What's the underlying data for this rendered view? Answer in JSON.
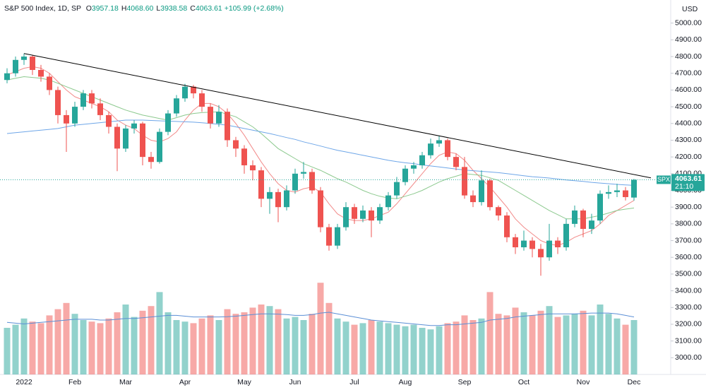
{
  "chart_data": {
    "type": "candlestick",
    "symbol": "S&P 500 Index, 1D, SP",
    "ohlc_legend": [
      {
        "label": "O",
        "value_label": "3957.18"
      },
      {
        "label": "H",
        "value_label": "4068.60"
      },
      {
        "label": "L",
        "value_label": "3938.58"
      },
      {
        "label": "C",
        "value_label": "4063.61"
      }
    ],
    "change_label": "+105.99 (+2.68%)",
    "currency": "USD",
    "ticker_tag": "SPX",
    "countdown": "21:10",
    "up_color": "#26a69a",
    "down_color": "#ef5350",
    "categories": [
      null,
      null,
      "2022",
      null,
      null,
      null,
      null,
      null,
      "Feb",
      null,
      null,
      null,
      null,
      null,
      "Mar",
      null,
      null,
      null,
      null,
      null,
      null,
      "Apr",
      null,
      null,
      null,
      null,
      null,
      null,
      "May",
      null,
      null,
      null,
      null,
      null,
      "Jun",
      null,
      null,
      null,
      null,
      null,
      null,
      "Jul",
      null,
      null,
      null,
      null,
      null,
      "Aug",
      null,
      null,
      null,
      null,
      null,
      null,
      "Sep",
      null,
      null,
      null,
      null,
      null,
      null,
      "Oct",
      null,
      null,
      null,
      null,
      null,
      null,
      "Nov",
      null,
      null,
      null,
      null,
      null,
      "Dec"
    ],
    "open": [
      4660,
      4700,
      4780,
      4800,
      4720,
      4680,
      4600,
      4450,
      4400,
      4500,
      4580,
      4520,
      4450,
      4380,
      4250,
      4370,
      4400,
      4200,
      4170,
      4350,
      4460,
      4550,
      4620,
      4580,
      4500,
      4400,
      4470,
      4300,
      4250,
      4150,
      4120,
      3950,
      3990,
      3900,
      4000,
      4100,
      4110,
      4000,
      3780,
      3670,
      3780,
      3900,
      3830,
      3880,
      3820,
      3900,
      3970,
      4050,
      4130,
      4150,
      4210,
      4280,
      4300,
      4200,
      4140,
      3970,
      3930,
      4060,
      3900,
      3850,
      3720,
      3660,
      3700,
      3650,
      3600,
      3700,
      3660,
      3800,
      3880,
      3770,
      3820,
      3980,
      3990,
      4000,
      3957.18
    ],
    "high": [
      4730,
      4800,
      4818,
      4810,
      4750,
      4700,
      4620,
      4480,
      4530,
      4600,
      4600,
      4550,
      4470,
      4400,
      4390,
      4420,
      4410,
      4230,
      4370,
      4480,
      4570,
      4637,
      4630,
      4600,
      4520,
      4510,
      4490,
      4320,
      4270,
      4180,
      4140,
      4020,
      4010,
      4030,
      4130,
      4170,
      4130,
      4020,
      3800,
      3800,
      3930,
      3920,
      3910,
      3900,
      3920,
      3990,
      4080,
      4150,
      4170,
      4230,
      4310,
      4325,
      4310,
      4220,
      4200,
      4000,
      4120,
      4070,
      3910,
      3870,
      3740,
      3760,
      3720,
      3680,
      3800,
      3720,
      3830,
      3910,
      3890,
      3860,
      4000,
      4030,
      4040,
      4020,
      4068.6
    ],
    "low": [
      4640,
      4680,
      4750,
      4690,
      4650,
      4570,
      4400,
      4230,
      4380,
      4480,
      4490,
      4420,
      4340,
      4115,
      4230,
      4340,
      4150,
      4130,
      4160,
      4330,
      4440,
      4530,
      4550,
      4470,
      4370,
      4380,
      4260,
      4200,
      4100,
      4060,
      3900,
      3860,
      3810,
      3880,
      3980,
      4070,
      3980,
      3750,
      3640,
      3650,
      3760,
      3800,
      3810,
      3720,
      3800,
      3880,
      3950,
      4030,
      4100,
      4130,
      4190,
      4260,
      4180,
      4120,
      3950,
      3900,
      3910,
      3880,
      3820,
      3690,
      3620,
      3640,
      3600,
      3490,
      3580,
      3620,
      3640,
      3780,
      3720,
      3740,
      3800,
      3950,
      3960,
      3940,
      3938.58
    ],
    "close": [
      4700,
      4780,
      4800,
      4720,
      4680,
      4600,
      4450,
      4400,
      4500,
      4580,
      4520,
      4450,
      4380,
      4250,
      4370,
      4400,
      4200,
      4170,
      4350,
      4460,
      4550,
      4620,
      4580,
      4500,
      4400,
      4470,
      4300,
      4250,
      4150,
      4120,
      3950,
      3990,
      3900,
      4000,
      4100,
      4110,
      4000,
      3780,
      3670,
      3780,
      3900,
      3830,
      3880,
      3820,
      3900,
      3970,
      4050,
      4130,
      4150,
      4210,
      4280,
      4300,
      4200,
      4140,
      3970,
      3930,
      4060,
      3900,
      3850,
      3720,
      3660,
      3700,
      3650,
      3600,
      3700,
      3660,
      3800,
      3880,
      3770,
      3820,
      3980,
      3990,
      4000,
      3960,
      4063.61
    ],
    "volume": [
      3.0,
      3.2,
      3.6,
      3.4,
      3.3,
      3.8,
      4.2,
      4.6,
      3.9,
      3.5,
      3.4,
      3.3,
      3.6,
      4.0,
      4.5,
      3.7,
      4.1,
      4.4,
      5.3,
      4.0,
      3.5,
      3.4,
      3.3,
      3.6,
      3.8,
      3.5,
      4.2,
      3.9,
      4.0,
      4.3,
      4.5,
      4.4,
      4.2,
      3.6,
      3.7,
      3.5,
      3.9,
      5.9,
      4.6,
      3.6,
      3.4,
      3.2,
      3.3,
      3.5,
      3.4,
      3.3,
      3.2,
      3.1,
      3.2,
      3.0,
      2.9,
      3.1,
      3.3,
      3.4,
      3.8,
      3.5,
      3.6,
      5.3,
      3.9,
      3.8,
      4.3,
      4.0,
      3.8,
      4.1,
      4.4,
      3.7,
      3.8,
      3.9,
      4.1,
      3.8,
      4.5,
      3.9,
      3.6,
      3.2,
      3.5
    ],
    "volume_ma": {
      "color": "#5b8fd6",
      "values": [
        3.35,
        3.3,
        3.25,
        3.3,
        3.35,
        3.4,
        3.45,
        3.5,
        3.55,
        3.55,
        3.55,
        3.5,
        3.5,
        3.55,
        3.6,
        3.6,
        3.65,
        3.7,
        3.75,
        3.8,
        3.8,
        3.75,
        3.7,
        3.7,
        3.7,
        3.7,
        3.72,
        3.75,
        3.8,
        3.85,
        3.9,
        3.9,
        3.88,
        3.85,
        3.8,
        3.8,
        3.85,
        3.95,
        4.0,
        3.9,
        3.8,
        3.7,
        3.6,
        3.5,
        3.45,
        3.4,
        3.35,
        3.3,
        3.25,
        3.2,
        3.15,
        3.15,
        3.2,
        3.2,
        3.25,
        3.3,
        3.35,
        3.5,
        3.55,
        3.6,
        3.7,
        3.75,
        3.8,
        3.85,
        3.9,
        3.9,
        3.9,
        3.9,
        3.92,
        3.95,
        3.95,
        3.95,
        3.9,
        3.8,
        3.7
      ]
    },
    "overlays": [
      {
        "color": "#f28b8a",
        "values": [
          4690,
          4710,
          4730,
          4740,
          4730,
          4700,
          4650,
          4600,
          4560,
          4540,
          4520,
          4500,
          4470,
          4420,
          4390,
          4370,
          4330,
          4300,
          4290,
          4310,
          4350,
          4420,
          4480,
          4520,
          4520,
          4500,
          4460,
          4400,
          4330,
          4250,
          4170,
          4100,
          4040,
          4000,
          3990,
          4010,
          4020,
          3990,
          3920,
          3860,
          3830,
          3820,
          3820,
          3830,
          3850,
          3870,
          3920,
          3980,
          4040,
          4100,
          4160,
          4210,
          4230,
          4220,
          4180,
          4120,
          4070,
          4020,
          3960,
          3900,
          3830,
          3780,
          3740,
          3700,
          3680,
          3670,
          3690,
          3720,
          3740,
          3760,
          3800,
          3850,
          3880,
          3910,
          3940
        ]
      },
      {
        "color": "#8cc98e",
        "values": [
          4660,
          4670,
          4680,
          4675,
          4670,
          4660,
          4640,
          4620,
          4600,
          4580,
          4560,
          4540,
          4520,
          4500,
          4480,
          4465,
          4450,
          4440,
          4430,
          4420,
          4435,
          4450,
          4460,
          4465,
          4468,
          4470,
          4455,
          4440,
          4410,
          4380,
          4340,
          4295,
          4250,
          4220,
          4190,
          4160,
          4140,
          4120,
          4095,
          4070,
          4050,
          4025,
          4000,
          3980,
          3965,
          3955,
          3950,
          3965,
          3980,
          4000,
          4025,
          4050,
          4070,
          4085,
          4100,
          4095,
          4090,
          4075,
          4060,
          4030,
          4000,
          3970,
          3940,
          3910,
          3880,
          3855,
          3830,
          3830,
          3830,
          3840,
          3850,
          3865,
          3880,
          3888,
          3895
        ]
      },
      {
        "color": "#6ea6e8",
        "values": [
          4340,
          4345,
          4350,
          4355,
          4360,
          4365,
          4370,
          4380,
          4390,
          4395,
          4400,
          4405,
          4410,
          4415,
          4420,
          4420,
          4420,
          4418,
          4416,
          4414,
          4412,
          4410,
          4408,
          4404,
          4400,
          4395,
          4390,
          4380,
          4370,
          4360,
          4350,
          4340,
          4328,
          4316,
          4305,
          4290,
          4278,
          4265,
          4252,
          4240,
          4230,
          4220,
          4210,
          4200,
          4190,
          4180,
          4172,
          4165,
          4160,
          4152,
          4146,
          4140,
          4134,
          4128,
          4122,
          4118,
          4114,
          4110,
          4106,
          4100,
          4094,
          4088,
          4082,
          4078,
          4074,
          4068,
          4062,
          4058,
          4054,
          4048,
          4044,
          4040,
          4036,
          4033,
          4030
        ]
      }
    ],
    "trendline": {
      "color": "#000000",
      "x": [
        2,
        76
      ],
      "values": [
        4818,
        4075
      ]
    },
    "ylim": [
      2900,
      5100
    ],
    "yticks": [
      {
        "value": 3000,
        "label": "3000.00"
      },
      {
        "value": 3100,
        "label": "3100.00"
      },
      {
        "value": 3200,
        "label": "3200.00"
      },
      {
        "value": 3300,
        "label": "3300.00"
      },
      {
        "value": 3400,
        "label": "3400.00"
      },
      {
        "value": 3500,
        "label": "3500.00"
      },
      {
        "value": 3600,
        "label": "3600.00"
      },
      {
        "value": 3700,
        "label": "3700.00"
      },
      {
        "value": 3800,
        "label": "3800.00"
      },
      {
        "value": 3900,
        "label": "3900.00"
      },
      {
        "value": 4000,
        "label": "4000.00"
      },
      {
        "value": 4100,
        "label": "4100.00"
      },
      {
        "value": 4200,
        "label": "4200.00"
      },
      {
        "value": 4300,
        "label": "4300.00"
      },
      {
        "value": 4400,
        "label": "4400.00"
      },
      {
        "value": 4500,
        "label": "4500.00"
      },
      {
        "value": 4600,
        "label": "4600.00"
      },
      {
        "value": 4700,
        "label": "4700.00"
      },
      {
        "value": 4800,
        "label": "4800.00"
      },
      {
        "value": 4900,
        "label": "4900.00"
      },
      {
        "value": 5000,
        "label": "5000.00"
      }
    ],
    "grid": false
  }
}
